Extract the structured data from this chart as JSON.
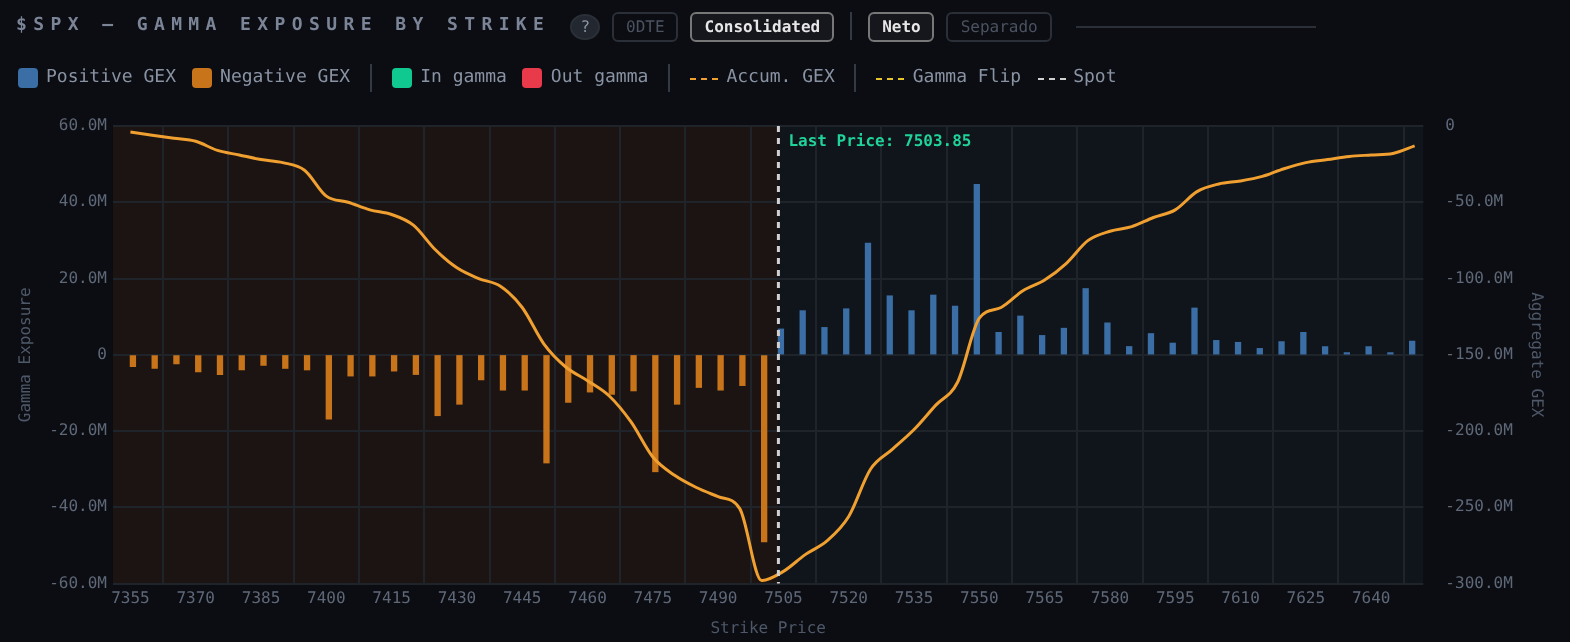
{
  "chart_data": {
    "type": "bar",
    "title": "$SPX — GAMMA EXPOSURE BY STRIKE",
    "xlabel": "Strike Price",
    "ylabel": "Gamma Exposure",
    "y2label": "Aggregate GEX",
    "annotations": [
      "?",
      "0DTE",
      "Consolidated",
      "Neto",
      "Separado",
      {
        "text": "Last Price: 7503.85",
        "x": 7503.85,
        "y": 60
      }
    ],
    "x": [
      7355,
      7360,
      7365,
      7370,
      7375,
      7380,
      7385,
      7390,
      7395,
      7400,
      7405,
      7410,
      7415,
      7420,
      7425,
      7430,
      7435,
      7440,
      7445,
      7450,
      7455,
      7460,
      7465,
      7470,
      7475,
      7480,
      7485,
      7490,
      7495,
      7500,
      7505,
      7510,
      7515,
      7520,
      7525,
      7530,
      7535,
      7540,
      7545,
      7550,
      7555,
      7560,
      7565,
      7570,
      7575,
      7580,
      7585,
      7590,
      7595,
      7600,
      7605,
      7610,
      7615,
      7620,
      7625,
      7630,
      7635,
      7640,
      7645,
      7650
    ],
    "series": [
      {
        "name": "Positive GEX",
        "color": "#3a6ea5",
        "values": [
          null,
          null,
          null,
          null,
          null,
          null,
          null,
          null,
          null,
          null,
          null,
          null,
          null,
          null,
          null,
          null,
          null,
          null,
          null,
          null,
          null,
          null,
          null,
          null,
          null,
          null,
          null,
          null,
          null,
          null,
          6.7,
          11.5,
          7.1,
          12,
          29.2,
          15.4,
          11.5,
          15.6,
          12.7,
          44.6,
          5.8,
          10.1,
          5,
          6.9,
          17.3,
          8.3,
          2.1,
          5.5,
          3,
          12.2,
          3.7,
          3.2,
          1.6,
          3.4,
          5.8,
          2.1,
          0.5,
          2.1,
          0.5,
          3.5
        ]
      },
      {
        "name": "Negative GEX",
        "color": "#c8741a",
        "values": [
          -3,
          -3.5,
          -2.3,
          -4.4,
          -5.1,
          -3.9,
          -2.7,
          -3.5,
          -3.9,
          -16.8,
          -5.5,
          -5.5,
          -4.2,
          -5.1,
          -15.9,
          -12.9,
          -6.5,
          -9.2,
          -9.2,
          -28.3,
          -12.4,
          -9.7,
          -10.3,
          -9.4,
          -30.6,
          -12.9,
          -8.5,
          -9.2,
          -8,
          -49,
          null,
          null,
          null,
          null,
          null,
          null,
          null,
          null,
          null,
          null,
          null,
          null,
          null,
          null,
          null,
          null,
          null,
          null,
          null,
          null,
          null,
          null,
          null,
          null,
          null,
          null,
          null,
          null,
          null,
          null
        ]
      },
      {
        "name": "In gamma",
        "type": "scatter",
        "color": "#10c990",
        "values": [
          null,
          null,
          null,
          null,
          null,
          null,
          null,
          null,
          null,
          null,
          null,
          null,
          null,
          null,
          null,
          null,
          null,
          null,
          null,
          null,
          null,
          null,
          null,
          null,
          null,
          null,
          null,
          null,
          null,
          null,
          null,
          null,
          null,
          null,
          null,
          null,
          null,
          null,
          null,
          null,
          null,
          null,
          null,
          null,
          null,
          null,
          null,
          null,
          null,
          null,
          null,
          null,
          null,
          null,
          null,
          null,
          null,
          null,
          null,
          null
        ]
      },
      {
        "name": "Out gamma",
        "type": "scatter",
        "color": "#e83a4a",
        "values": [
          null,
          null,
          null,
          null,
          null,
          null,
          null,
          null,
          null,
          null,
          null,
          null,
          null,
          null,
          null,
          null,
          null,
          null,
          null,
          null,
          null,
          null,
          null,
          null,
          null,
          null,
          null,
          null,
          null,
          null,
          null,
          null,
          null,
          null,
          null,
          null,
          null,
          null,
          null,
          null,
          null,
          null,
          null,
          null,
          null,
          null,
          null,
          null,
          null,
          null,
          null,
          null,
          null,
          null,
          null,
          null,
          null,
          null,
          null,
          null
        ]
      },
      {
        "name": "Accum. GEX",
        "type": "line",
        "axis": "y2",
        "color": "#f0a030",
        "values": [
          -4,
          -6,
          -8,
          -10,
          -16,
          -19,
          -22,
          -24,
          -29,
          -46,
          -50,
          -55,
          -58,
          -65,
          -81,
          -93,
          -100,
          -105,
          -119,
          -143,
          -158,
          -167,
          -177,
          -194,
          -217,
          -229,
          -237,
          -243,
          -251,
          -298,
          -292,
          -281,
          -272,
          -256,
          -225,
          -212,
          -199,
          -183,
          -168,
          -126,
          -119,
          -108,
          -101,
          -90,
          -75,
          -69,
          -66,
          -60,
          -55,
          -43,
          -38,
          -36,
          -33,
          -28,
          -24,
          -22,
          -20,
          -19,
          -18,
          -13
        ]
      },
      {
        "name": "Gamma Flip",
        "type": "line",
        "color": "#e8c52a",
        "values": [
          null,
          null,
          null,
          null,
          null,
          null,
          null,
          null,
          null,
          null,
          null,
          null,
          null,
          null,
          null,
          null,
          null,
          null,
          null,
          null,
          null,
          null,
          null,
          null,
          null,
          null,
          null,
          null,
          null,
          null,
          null,
          null,
          null,
          null,
          null,
          null,
          null,
          null,
          null,
          null,
          null,
          null,
          null,
          null,
          null,
          null,
          null,
          null,
          null,
          null,
          null,
          null,
          null,
          null,
          null,
          null,
          null,
          null,
          null,
          null
        ]
      }
    ],
    "xlim": [
      7351,
      7652
    ],
    "xticks": [
      7355,
      7370,
      7385,
      7400,
      7415,
      7430,
      7445,
      7460,
      7475,
      7490,
      7505,
      7520,
      7535,
      7550,
      7565,
      7580,
      7595,
      7610,
      7625,
      7640
    ],
    "ylim": [
      -60,
      60
    ],
    "yticks": [
      {
        "value": -60,
        "label": "-60.0M"
      },
      {
        "value": -40,
        "label": "-40.0M"
      },
      {
        "value": -20,
        "label": "-20.0M"
      },
      0,
      {
        "value": 20,
        "label": "20.0M"
      },
      {
        "value": 40,
        "label": "40.0M"
      },
      {
        "value": 60,
        "label": "60.0M"
      }
    ],
    "y2lim": [
      -300,
      0
    ],
    "y2ticks": [
      {
        "value": -300,
        "label": "-300.0M"
      },
      {
        "value": -250,
        "label": "-250.0M"
      },
      {
        "value": -200,
        "label": "-200.0M"
      },
      {
        "value": -150,
        "label": "-150.0M"
      },
      {
        "value": -100,
        "label": "-100.0M"
      },
      {
        "value": -50,
        "label": "-50.0M"
      },
      0
    ],
    "ref_lines": [
      {
        "axis": "x",
        "value": 7503.85,
        "label": "Spot",
        "color": "#d0d0d0",
        "line_style": "dashed"
      }
    ],
    "bands": [
      {
        "axis": "x",
        "from": 7351,
        "to": 7503.85,
        "color": "#1c1412"
      },
      {
        "axis": "x",
        "from": 7503.85,
        "to": 7652,
        "color": "#10141b"
      }
    ],
    "grid": true,
    "legend": "top",
    "marker": "none"
  }
}
